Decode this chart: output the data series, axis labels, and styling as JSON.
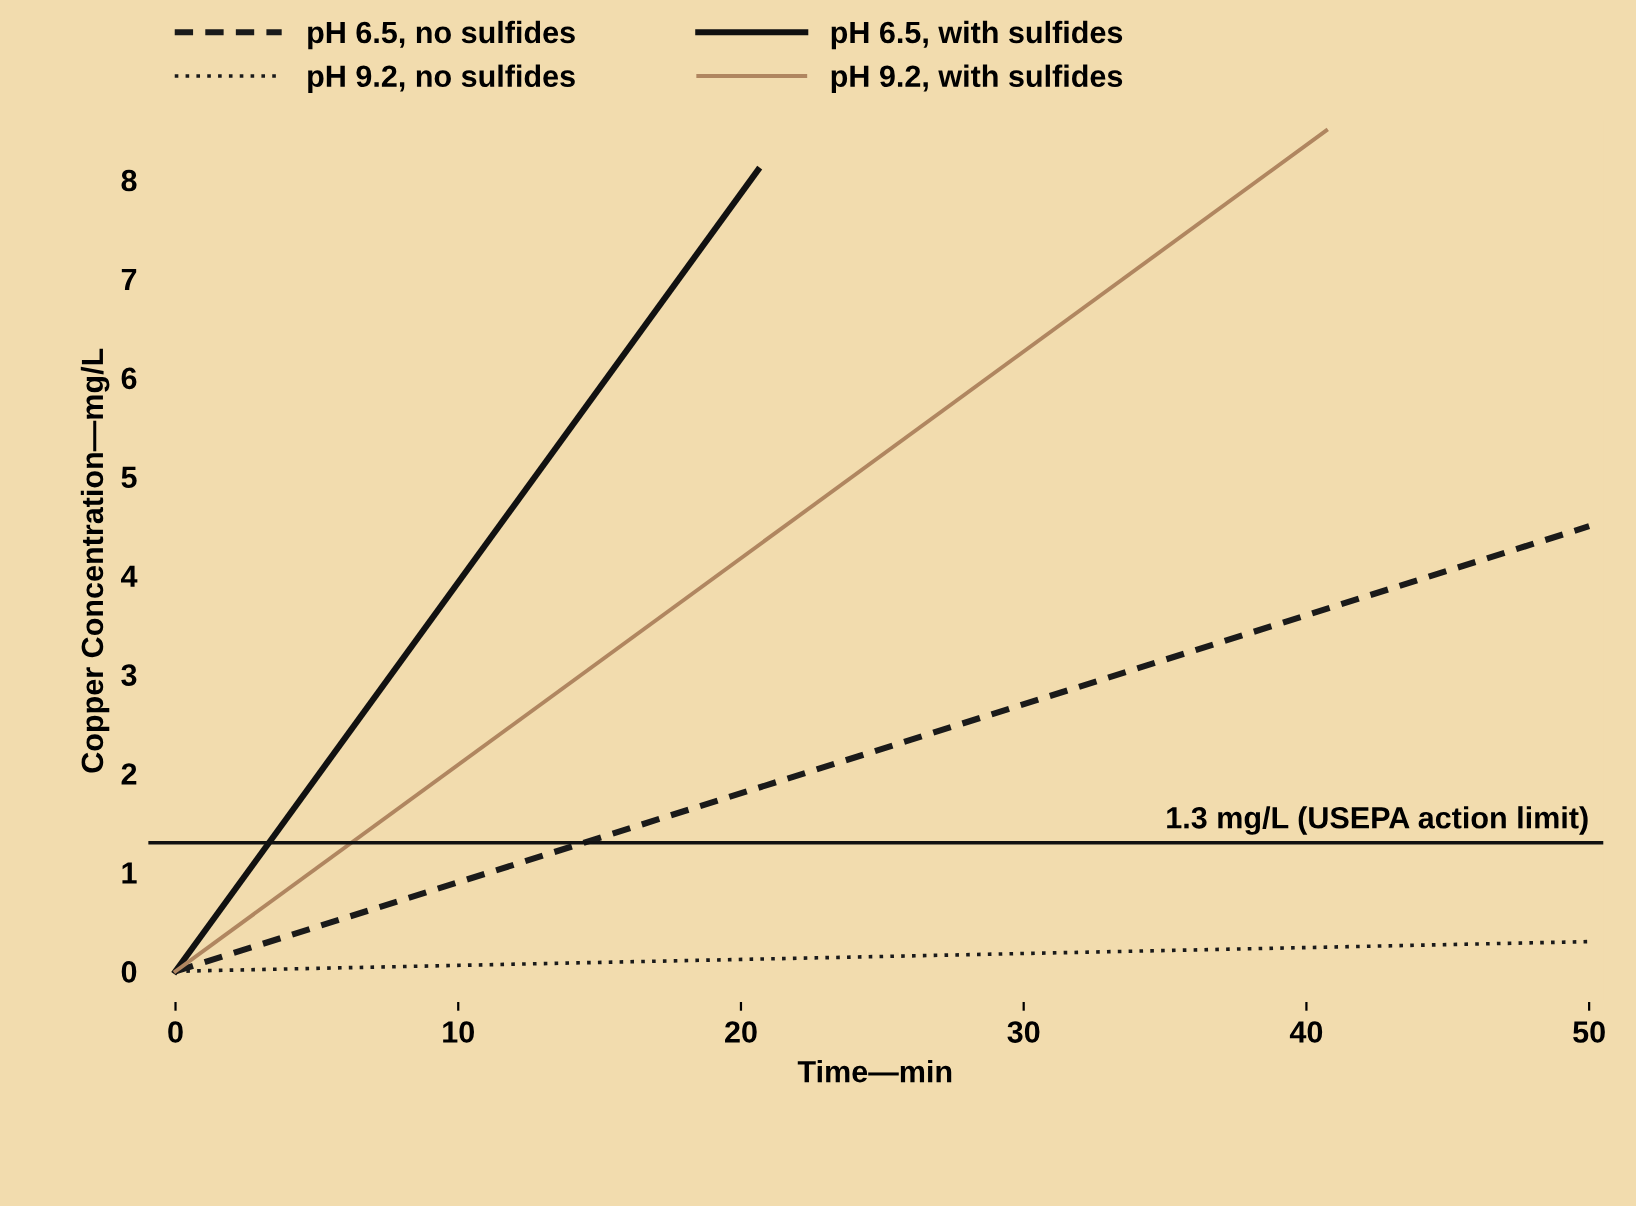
{
  "chart_data": {
    "type": "line",
    "xlabel": "Time—min",
    "ylabel": "Copper Concentration—mg/L",
    "xlim": [
      -1,
      50.5
    ],
    "ylim": [
      -0.3,
      8.6
    ],
    "xticks": [
      0,
      10,
      20,
      30,
      40,
      50
    ],
    "yticks": [
      0,
      1,
      2,
      3,
      4,
      5,
      6,
      7,
      8
    ],
    "legend": "top left",
    "grid": false,
    "series": [
      {
        "name": "pH 6.5, no sulfides",
        "color": "#1a1a1a",
        "line_style": "dashed",
        "x": [
          0,
          50
        ],
        "values": [
          0,
          4.5
        ]
      },
      {
        "name": "pH 9.2, no sulfides",
        "color": "#1a1a1a",
        "line_style": "dotted",
        "x": [
          0,
          50
        ],
        "values": [
          0,
          0.3
        ]
      },
      {
        "name": "pH 6.5, with sulfides",
        "color": "#111111",
        "line_style": "solid",
        "x": [
          0,
          20.6
        ],
        "values": [
          0,
          8.1
        ]
      },
      {
        "name": "pH 9.2, with sulfides",
        "color": "#b08660",
        "line_style": "solid",
        "x": [
          0,
          40.7
        ],
        "values": [
          0,
          8.5
        ]
      }
    ],
    "ref_lines": [
      {
        "axis": "y",
        "value": 1.3,
        "label": "1.3 mg/L (USEPA action limit)",
        "color": "#111111",
        "line_style": "solid"
      }
    ]
  }
}
